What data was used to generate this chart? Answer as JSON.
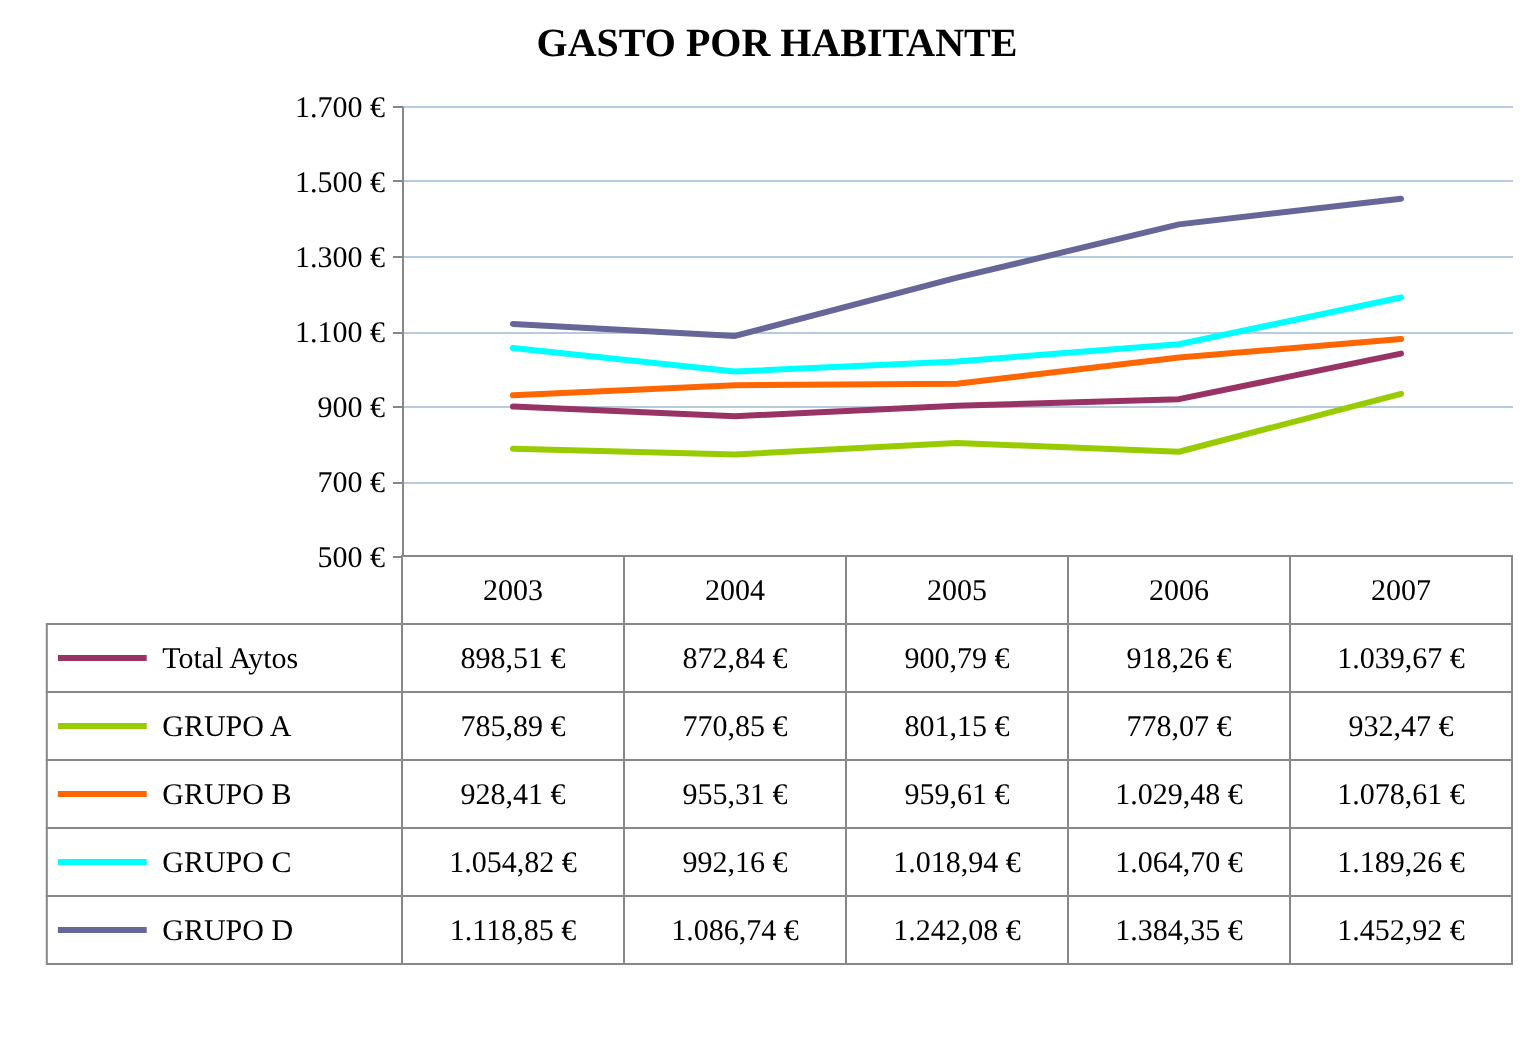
{
  "chart_data": {
    "type": "line",
    "title": "GASTO POR HABITANTE",
    "categories": [
      "2003",
      "2004",
      "2005",
      "2006",
      "2007"
    ],
    "series": [
      {
        "name": "Total Aytos",
        "color": "#993366",
        "values": [
          898.51,
          872.84,
          900.79,
          918.26,
          1039.67
        ],
        "value_labels": [
          "898,51 €",
          "872,84 €",
          "900,79 €",
          "918,26 €",
          "1.039,67 €"
        ]
      },
      {
        "name": "GRUPO A",
        "color": "#99cc00",
        "values": [
          785.89,
          770.85,
          801.15,
          778.07,
          932.47
        ],
        "value_labels": [
          "785,89 €",
          "770,85 €",
          "801,15 €",
          "778,07 €",
          "932,47 €"
        ]
      },
      {
        "name": "GRUPO B",
        "color": "#ff6600",
        "values": [
          928.41,
          955.31,
          959.61,
          1029.48,
          1078.61
        ],
        "value_labels": [
          "928,41 €",
          "955,31 €",
          "959,61 €",
          "1.029,48 €",
          "1.078,61 €"
        ]
      },
      {
        "name": "GRUPO C",
        "color": "#00ffff",
        "values": [
          1054.82,
          992.16,
          1018.94,
          1064.7,
          1189.26
        ],
        "value_labels": [
          "1.054,82 €",
          "992,16 €",
          "1.018,94 €",
          "1.064,70 €",
          "1.189,26 €"
        ]
      },
      {
        "name": "GRUPO D",
        "color": "#666699",
        "values": [
          1118.85,
          1086.74,
          1242.08,
          1384.35,
          1452.92
        ],
        "value_labels": [
          "1.118,85 €",
          "1.086,74 €",
          "1.242,08 €",
          "1.384,35 €",
          "1.452,92 €"
        ]
      }
    ],
    "ylim": [
      500,
      1700
    ],
    "yticks": [
      {
        "value": 500,
        "label": "500 €"
      },
      {
        "value": 700,
        "label": "700 €"
      },
      {
        "value": 900,
        "label": "900 €"
      },
      {
        "value": 1100,
        "label": "1.100 €"
      },
      {
        "value": 1300,
        "label": "1.300 €"
      },
      {
        "value": 1500,
        "label": "1.500 €"
      },
      {
        "value": 1700,
        "label": "1.700 €"
      }
    ],
    "grid": "y",
    "legend": "bottom",
    "line_style": "solid"
  }
}
